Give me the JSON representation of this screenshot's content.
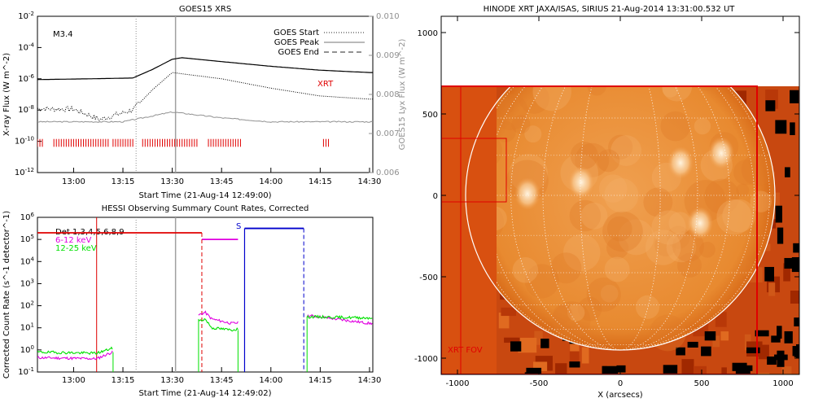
{
  "chart_data": [
    {
      "type": "line",
      "title": "GOES15 XRS",
      "xlabel": "Start Time (21-Aug-14 12:49:00)",
      "ylabel": "X-ray Flux (W m^-2)",
      "y2label": "GOES15 Lyx Flux (W m^-2)",
      "x_ticks": [
        "13:00",
        "13:15",
        "13:30",
        "13:45",
        "14:00",
        "14:15",
        "14:30"
      ],
      "y_ticks": [
        "10^-2",
        "10^-4",
        "10^-6",
        "10^-8",
        "10^-10",
        "10^-12"
      ],
      "y2_ticks": [
        "0.010",
        "0.009",
        "0.008",
        "0.007",
        "0.006"
      ],
      "ylim_log10": [
        -12,
        -2
      ],
      "y2lim": [
        0.006,
        0.01
      ],
      "flare_class": "M3.4",
      "legend": [
        {
          "label": "GOES Start",
          "style": "dotted"
        },
        {
          "label": "GOES Peak",
          "style": "solid"
        },
        {
          "label": "GOES End",
          "style": "dashed"
        }
      ],
      "annotation": "XRT",
      "goes_start": "13:19",
      "goes_peak": "13:31",
      "series": [
        {
          "color": "#000000",
          "style": "solid",
          "x": [
            "12:49",
            "13:05",
            "13:18",
            "13:24",
            "13:30",
            "13:33",
            "13:45",
            "14:00",
            "14:15",
            "14:30"
          ],
          "log10_values": [
            -6.05,
            -6.0,
            -5.95,
            -5.4,
            -4.75,
            -4.65,
            -4.9,
            -5.2,
            -5.45,
            -5.6
          ]
        },
        {
          "color": "#000000",
          "style": "dotted",
          "x": [
            "12:49",
            "13:00",
            "13:08",
            "13:18",
            "13:24",
            "13:30",
            "13:45",
            "14:00",
            "14:15",
            "14:30"
          ],
          "log10_values": [
            -7.9,
            -7.95,
            -8.6,
            -8.0,
            -6.7,
            -5.6,
            -6.0,
            -6.6,
            -7.1,
            -7.3
          ]
        },
        {
          "color": "#909090",
          "style": "solid",
          "x": [
            "12:49",
            "13:15",
            "13:30",
            "13:45",
            "14:00",
            "14:30"
          ],
          "values": [
            0.0073,
            0.0073,
            0.00755,
            0.0074,
            0.0073,
            0.0073
          ]
        }
      ],
      "xrt_observation_times": [
        "12:49-12:51",
        "12:54-13:11",
        "13:12-13:18",
        "13:21-13:38",
        "13:41-13:51",
        "14:16-14:18"
      ]
    },
    {
      "type": "line",
      "title": "HESSI Observing Summary Count Rates, Corrected",
      "xlabel": "Start Time (21-Aug-14 12:49:02)",
      "ylabel": "Corrected Count Rate (s^-1 detector^-1)",
      "x_ticks": [
        "13:00",
        "13:15",
        "13:30",
        "13:45",
        "14:00",
        "14:15",
        "14:30"
      ],
      "y_ticks": [
        "10^6",
        "10^5",
        "10^4",
        "10^3",
        "10^2",
        "10^1",
        "10^0",
        "10^-1"
      ],
      "ylim_log10": [
        -1,
        6
      ],
      "legend": [
        {
          "label": "Det 1,3,4,5,6,8,9",
          "color": "#000000"
        },
        {
          "label": "6-12 keV",
          "color": "#e000e0"
        },
        {
          "label": "12-25 keV",
          "color": "#00e000"
        }
      ],
      "annotation": "S",
      "series": [
        {
          "name": "6-12 keV",
          "x": [
            "12:49",
            "13:07",
            "13:40",
            "13:42",
            "13:48",
            "14:12",
            "14:30"
          ],
          "log10_values": [
            -0.35,
            -0.4,
            1.7,
            1.4,
            1.2,
            1.55,
            1.2
          ]
        },
        {
          "name": "12-25 keV",
          "x": [
            "12:49",
            "13:07",
            "13:40",
            "13:42",
            "13:48",
            "14:12",
            "14:30"
          ],
          "log10_values": [
            -0.1,
            -0.15,
            1.4,
            1.0,
            0.9,
            1.5,
            1.45
          ]
        }
      ],
      "state_bars": [
        {
          "color": "#e00000",
          "x": [
            "12:49",
            "13:39"
          ],
          "log10_value": 5.3
        },
        {
          "color": "#e000e0",
          "x": [
            "13:39",
            "13:50"
          ],
          "log10_value": 5.0
        },
        {
          "color": "#0000cc",
          "x": [
            "13:52",
            "14:10"
          ],
          "log10_value": 5.5
        }
      ]
    },
    {
      "type": "heatmap",
      "title": "HINODE XRT JAXA/ISAS, SIRIUS 21-Aug-2014 13:31:00.532 UT",
      "xlabel": "X (arcsecs)",
      "ylabel": "",
      "x_ticks": [
        "-1000",
        "-500",
        "0",
        "500",
        "1000"
      ],
      "y_ticks": [
        "1000",
        "500",
        "0",
        "-500",
        "-1000"
      ],
      "xlim": [
        -1100,
        1100
      ],
      "ylim": [
        -1100,
        1100
      ],
      "annotation": "XRT FOV",
      "fov_box_arcsec": {
        "x": [
          -1100,
          840
        ],
        "y": [
          -1100,
          670
        ]
      },
      "sub_box_arcsec": {
        "x": [
          -1100,
          -700
        ],
        "y": [
          -40,
          350
        ]
      },
      "limb_radius_arcsec": 950,
      "bright_regions_arcsec": [
        {
          "x": -570,
          "y": 10
        },
        {
          "x": -240,
          "y": 80
        },
        {
          "x": 370,
          "y": 200
        },
        {
          "x": 490,
          "y": -170
        },
        {
          "x": 620,
          "y": 260
        }
      ]
    }
  ]
}
